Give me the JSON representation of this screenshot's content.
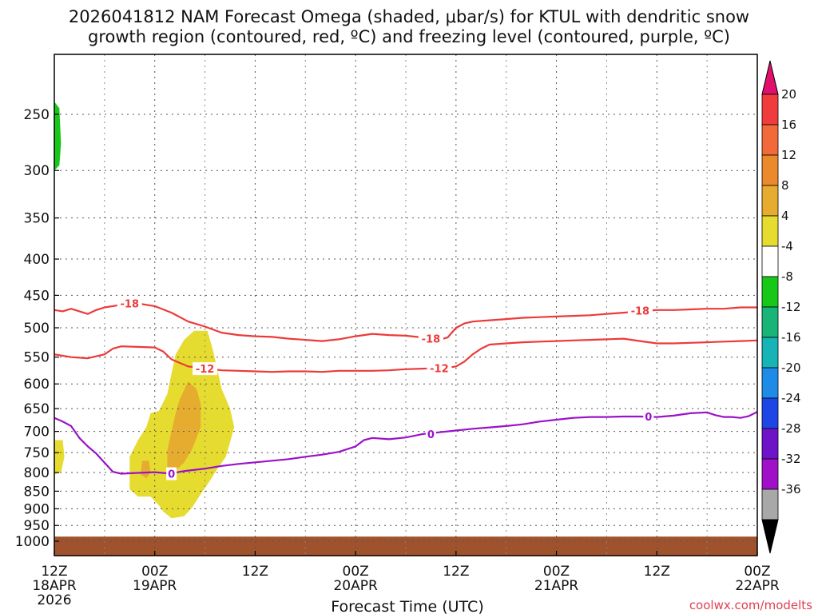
{
  "chart_data": {
    "type": "time-height",
    "title_line1": "2026041812 NAM Forecast Omega (shaded, μbar/s) for KTUL with dendritic snow",
    "title_line2": "growth region (contoured, red, ºC) and freezing level (contoured, purple, ºC)",
    "xlabel": "Forecast Time (UTC)",
    "credit": "coolwx.com/modelts",
    "x_range_hours": [
      0,
      84
    ],
    "pressure_range_hpa": [
      200,
      1025
    ],
    "x_ticks": [
      {
        "hour": 0,
        "line1": "12Z",
        "line2": "18APR",
        "line3": "2026"
      },
      {
        "hour": 12,
        "line1": "00Z",
        "line2": "19APR",
        "line3": ""
      },
      {
        "hour": 24,
        "line1": "12Z",
        "line2": "",
        "line3": ""
      },
      {
        "hour": 36,
        "line1": "00Z",
        "line2": "20APR",
        "line3": ""
      },
      {
        "hour": 48,
        "line1": "12Z",
        "line2": "",
        "line3": ""
      },
      {
        "hour": 60,
        "line1": "00Z",
        "line2": "21APR",
        "line3": ""
      },
      {
        "hour": 72,
        "line1": "12Z",
        "line2": "",
        "line3": ""
      },
      {
        "hour": 84,
        "line1": "00Z",
        "line2": "22APR",
        "line3": ""
      }
    ],
    "y_ticks": [
      "250",
      "300",
      "350",
      "400",
      "450",
      "500",
      "550",
      "600",
      "650",
      "700",
      "750",
      "800",
      "850",
      "900",
      "950",
      "1000"
    ],
    "colorbar": {
      "labels": [
        "20",
        "16",
        "12",
        "8",
        "4",
        "-4",
        "-8",
        "-12",
        "-16",
        "-20",
        "-24",
        "-28",
        "-32",
        "-36"
      ],
      "colors": [
        "#f03c3c",
        "#f26a3a",
        "#eb8a2c",
        "#e6ac30",
        "#e6dc30",
        "#ffffff",
        "#18c818",
        "#18b478",
        "#16b4b4",
        "#1e8ce6",
        "#1e46e6",
        "#6e14c8",
        "#a010c8",
        "#a8a8a8"
      ],
      "top_arrow_color": "#e0106c",
      "bottom_arrow_color": "#000000"
    },
    "contours": [
      {
        "name": "-18C isotherm",
        "color": "#ec3a3a",
        "label": "-18",
        "points": [
          [
            0,
            472
          ],
          [
            1,
            474
          ],
          [
            2,
            470
          ],
          [
            3,
            474
          ],
          [
            4,
            478
          ],
          [
            5,
            472
          ],
          [
            6,
            468
          ],
          [
            7,
            466
          ],
          [
            8,
            464
          ],
          [
            10,
            462
          ],
          [
            12,
            466
          ],
          [
            14,
            476
          ],
          [
            16,
            490
          ],
          [
            18,
            498
          ],
          [
            20,
            508
          ],
          [
            22,
            512
          ],
          [
            24,
            514
          ],
          [
            26,
            515
          ],
          [
            28,
            518
          ],
          [
            30,
            520
          ],
          [
            32,
            522
          ],
          [
            34,
            519
          ],
          [
            36,
            514
          ],
          [
            38,
            510
          ],
          [
            40,
            512
          ],
          [
            42,
            513
          ],
          [
            44,
            516
          ],
          [
            46,
            520
          ],
          [
            47,
            516
          ],
          [
            48,
            500
          ],
          [
            49,
            493
          ],
          [
            50,
            490
          ],
          [
            52,
            488
          ],
          [
            54,
            486
          ],
          [
            56,
            484
          ],
          [
            58,
            483
          ],
          [
            60,
            482
          ],
          [
            62,
            481
          ],
          [
            64,
            480
          ],
          [
            66,
            478
          ],
          [
            68,
            476
          ],
          [
            70,
            474
          ],
          [
            72,
            472
          ],
          [
            74,
            472
          ],
          [
            76,
            471
          ],
          [
            78,
            470
          ],
          [
            80,
            470
          ],
          [
            82,
            468
          ],
          [
            84,
            468
          ]
        ],
        "label_at": [
          [
            9,
            462
          ],
          [
            45,
            518
          ],
          [
            70,
            473
          ]
        ]
      },
      {
        "name": "-12C isotherm",
        "color": "#ec3a3a",
        "label": "-12",
        "points": [
          [
            0,
            545
          ],
          [
            2,
            550
          ],
          [
            4,
            552
          ],
          [
            6,
            545
          ],
          [
            7,
            535
          ],
          [
            8,
            531
          ],
          [
            10,
            532
          ],
          [
            12,
            533
          ],
          [
            13,
            540
          ],
          [
            14,
            554
          ],
          [
            16,
            567
          ],
          [
            18,
            570
          ],
          [
            20,
            574
          ],
          [
            22,
            575
          ],
          [
            24,
            576
          ],
          [
            26,
            577
          ],
          [
            28,
            576
          ],
          [
            30,
            576
          ],
          [
            32,
            577
          ],
          [
            34,
            575
          ],
          [
            36,
            575
          ],
          [
            38,
            575
          ],
          [
            40,
            574
          ],
          [
            42,
            572
          ],
          [
            44,
            571
          ],
          [
            46,
            570
          ],
          [
            47,
            569
          ],
          [
            48,
            567
          ],
          [
            49,
            558
          ],
          [
            50,
            545
          ],
          [
            51,
            535
          ],
          [
            52,
            528
          ],
          [
            54,
            526
          ],
          [
            56,
            524
          ],
          [
            58,
            523
          ],
          [
            60,
            522
          ],
          [
            62,
            521
          ],
          [
            64,
            520
          ],
          [
            66,
            519
          ],
          [
            68,
            518
          ],
          [
            70,
            522
          ],
          [
            72,
            526
          ],
          [
            74,
            526
          ],
          [
            76,
            525
          ],
          [
            78,
            524
          ],
          [
            80,
            523
          ],
          [
            82,
            522
          ],
          [
            84,
            521
          ]
        ],
        "label_at": [
          [
            18,
            571
          ],
          [
            46,
            570
          ]
        ]
      },
      {
        "name": "0C freezing level",
        "color": "#9b12c8",
        "label": "0",
        "points": [
          [
            0,
            670
          ],
          [
            1,
            678
          ],
          [
            2,
            688
          ],
          [
            3,
            715
          ],
          [
            4,
            735
          ],
          [
            5,
            752
          ],
          [
            6,
            775
          ],
          [
            7,
            798
          ],
          [
            8,
            803
          ],
          [
            10,
            801
          ],
          [
            12,
            799
          ],
          [
            14,
            803
          ],
          [
            15,
            798
          ],
          [
            16,
            795
          ],
          [
            18,
            790
          ],
          [
            20,
            783
          ],
          [
            22,
            778
          ],
          [
            24,
            774
          ],
          [
            26,
            770
          ],
          [
            28,
            766
          ],
          [
            30,
            760
          ],
          [
            32,
            755
          ],
          [
            34,
            748
          ],
          [
            36,
            735
          ],
          [
            37,
            720
          ],
          [
            38,
            715
          ],
          [
            40,
            718
          ],
          [
            42,
            714
          ],
          [
            44,
            706
          ],
          [
            46,
            702
          ],
          [
            48,
            698
          ],
          [
            50,
            694
          ],
          [
            52,
            691
          ],
          [
            54,
            688
          ],
          [
            56,
            684
          ],
          [
            58,
            678
          ],
          [
            60,
            674
          ],
          [
            62,
            670
          ],
          [
            64,
            668
          ],
          [
            66,
            668
          ],
          [
            68,
            667
          ],
          [
            70,
            667
          ],
          [
            72,
            668
          ],
          [
            74,
            665
          ],
          [
            76,
            660
          ],
          [
            78,
            658
          ],
          [
            79,
            664
          ],
          [
            80,
            668
          ],
          [
            81,
            668
          ],
          [
            82,
            670
          ],
          [
            83,
            666
          ],
          [
            84,
            657
          ]
        ],
        "label_at": [
          [
            14,
            803
          ],
          [
            45,
            706
          ],
          [
            71,
            667
          ]
        ]
      }
    ],
    "shaded_regions": [
      {
        "name": "omega 4 to 8 main",
        "value": "4",
        "color": "#e6dc30",
        "points": [
          [
            16.7,
            505
          ],
          [
            18.3,
            505
          ],
          [
            19,
            540
          ],
          [
            20,
            610
          ],
          [
            21,
            650
          ],
          [
            21.5,
            690
          ],
          [
            21,
            725
          ],
          [
            20.5,
            760
          ],
          [
            19.5,
            790
          ],
          [
            18.5,
            825
          ],
          [
            17.5,
            858
          ],
          [
            16.5,
            895
          ],
          [
            15.5,
            922
          ],
          [
            14,
            928
          ],
          [
            13,
            908
          ],
          [
            12.5,
            890
          ],
          [
            11.5,
            865
          ],
          [
            10,
            865
          ],
          [
            9,
            845
          ],
          [
            9,
            760
          ],
          [
            10,
            720
          ],
          [
            11,
            690
          ],
          [
            11.5,
            660
          ],
          [
            12.5,
            655
          ],
          [
            13.5,
            620
          ],
          [
            14,
            580
          ],
          [
            14.5,
            545
          ],
          [
            15.5,
            520
          ]
        ]
      },
      {
        "name": "omega 4 to 8 left edge",
        "value": "4",
        "color": "#e6dc30",
        "points": [
          [
            0,
            720
          ],
          [
            1,
            720
          ],
          [
            1.2,
            760
          ],
          [
            0.8,
            800
          ],
          [
            0,
            805
          ]
        ]
      },
      {
        "name": "omega 8 to 12 core",
        "value": "8",
        "color": "#e6ac30",
        "points": [
          [
            16,
            595
          ],
          [
            17,
            610
          ],
          [
            17.5,
            640
          ],
          [
            17.5,
            690
          ],
          [
            16.5,
            740
          ],
          [
            15.5,
            775
          ],
          [
            14.5,
            795
          ],
          [
            13.5,
            790
          ],
          [
            13.5,
            745
          ],
          [
            14,
            700
          ],
          [
            14.5,
            660
          ],
          [
            15,
            630
          ]
        ]
      },
      {
        "name": "omega 8 to 12 small",
        "value": "8",
        "color": "#e6ac30",
        "points": [
          [
            10.5,
            770
          ],
          [
            11.3,
            770
          ],
          [
            11.5,
            800
          ],
          [
            11,
            815
          ],
          [
            10.3,
            805
          ]
        ]
      },
      {
        "name": "omega -4 to -8 upper",
        "value": "-4",
        "color": "#18c818",
        "points": [
          [
            0,
            240
          ],
          [
            0.6,
            245
          ],
          [
            0.8,
            275
          ],
          [
            0.6,
            295
          ],
          [
            0,
            300
          ]
        ]
      }
    ],
    "ground_color": "#a0522d",
    "ground_top_hpa": 985,
    "ground_bottom_hpa": 1025
  }
}
